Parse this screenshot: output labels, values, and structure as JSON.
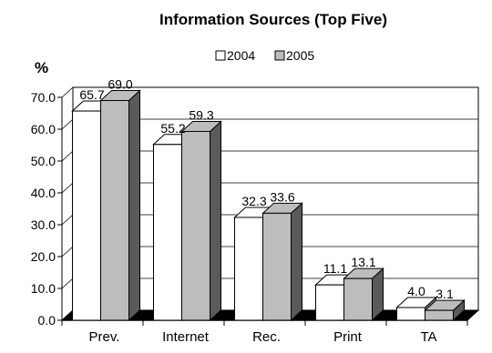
{
  "chart_data": {
    "type": "bar",
    "title": "Information Sources (Top Five)",
    "ylabel": "%",
    "xlabel": "",
    "categories": [
      "Prev.",
      "Internet",
      "Rec.",
      "Print",
      "TA"
    ],
    "series": [
      {
        "name": "2004",
        "values": [
          65.7,
          55.2,
          32.3,
          11.1,
          4.0
        ],
        "color": "#ffffff",
        "side_color": "#7f7f7f"
      },
      {
        "name": "2005",
        "values": [
          69.0,
          59.3,
          33.6,
          13.1,
          3.1
        ],
        "color": "#bdbdbd",
        "side_color": "#5a5a5a"
      }
    ],
    "data_labels": [
      [
        "65.7",
        "55.2",
        "32.3",
        "11.1",
        "4.0"
      ],
      [
        "69.0",
        "59.3",
        "33.6",
        "13.1",
        "3.1"
      ]
    ],
    "yticks": [
      "0.0",
      "10.0",
      "20.0",
      "30.0",
      "40.0",
      "50.0",
      "60.0",
      "70.0"
    ],
    "ylim": [
      0,
      70
    ],
    "grid": true,
    "legend_position": "top-center",
    "style": "3d-clustered-column"
  }
}
